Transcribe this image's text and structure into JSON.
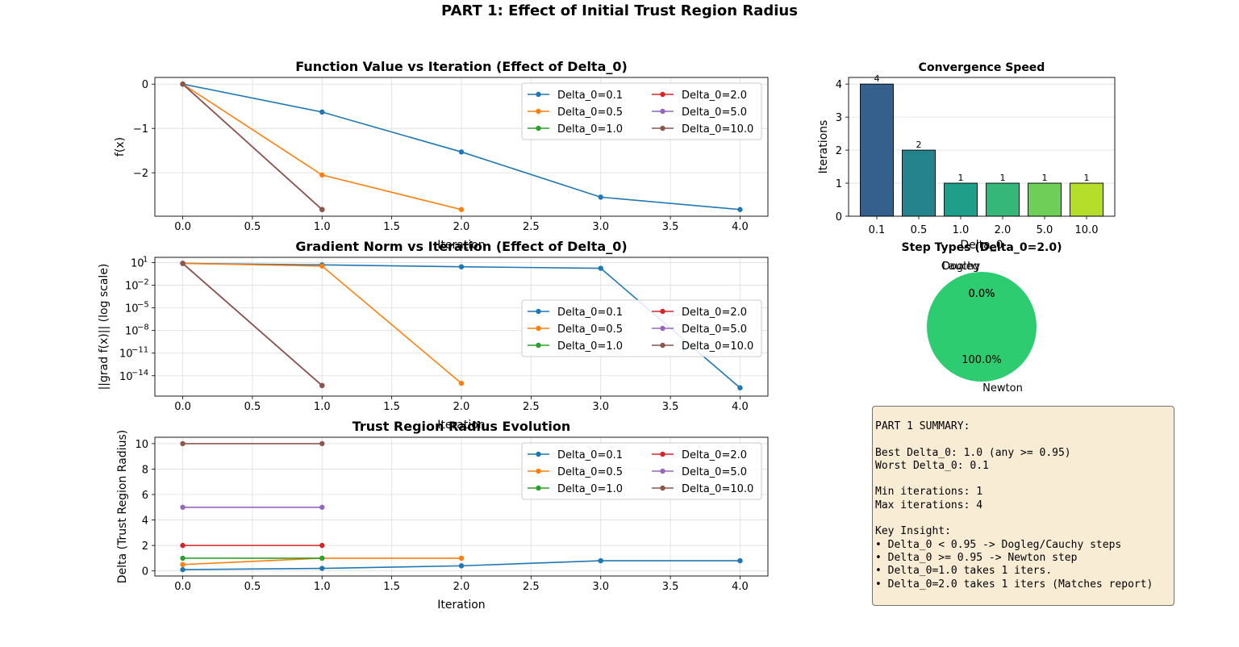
{
  "suptitle": "PART 1: Effect of Initial Trust Region Radius",
  "palette": {
    "Delta_0=0.1": "#1f77b4",
    "Delta_0=0.5": "#ff7f0e",
    "Delta_0=1.0": "#2ca02c",
    "Delta_0=2.0": "#d62728",
    "Delta_0=5.0": "#9467bd",
    "Delta_0=10.0": "#8c564b"
  },
  "chart_data": [
    {
      "id": "fval",
      "type": "line",
      "title": "Function Value vs Iteration (Effect of Delta_0)",
      "xlabel": "Iteration",
      "ylabel": "f(x)",
      "xlim": [
        -0.2,
        4.2
      ],
      "ylim": [
        -2.98,
        0.15
      ],
      "xticks": [
        "0.0",
        "0.5",
        "1.0",
        "1.5",
        "2.0",
        "2.5",
        "3.0",
        "3.5",
        "4.0"
      ],
      "yticks": [
        "0",
        "−1",
        "−2"
      ],
      "grid": true,
      "legend": "upper right, 2 columns",
      "series": [
        {
          "name": "Delta_0=0.1",
          "x": [
            0,
            1,
            2,
            3,
            4
          ],
          "y": [
            0,
            -0.63,
            -1.53,
            -2.55,
            -2.83
          ]
        },
        {
          "name": "Delta_0=0.5",
          "x": [
            0,
            1,
            2
          ],
          "y": [
            0,
            -2.05,
            -2.83
          ]
        },
        {
          "name": "Delta_0=1.0",
          "x": [
            0,
            1
          ],
          "y": [
            0,
            -2.83
          ]
        },
        {
          "name": "Delta_0=2.0",
          "x": [
            0,
            1
          ],
          "y": [
            0,
            -2.83
          ]
        },
        {
          "name": "Delta_0=5.0",
          "x": [
            0,
            1
          ],
          "y": [
            0,
            -2.83
          ]
        },
        {
          "name": "Delta_0=10.0",
          "x": [
            0,
            1
          ],
          "y": [
            0,
            -2.83
          ]
        }
      ]
    },
    {
      "id": "gnorm",
      "type": "line",
      "title": "Gradient Norm vs Iteration (Effect of Delta_0)",
      "xlabel": "Iteration",
      "ylabel": "||grad f(x)|| (log scale)",
      "yscale": "log",
      "xlim": [
        -0.2,
        4.2
      ],
      "ylim_log10": [
        -16.7,
        1.7
      ],
      "xticks": [
        "0.0",
        "0.5",
        "1.0",
        "1.5",
        "2.0",
        "2.5",
        "3.0",
        "3.5",
        "4.0"
      ],
      "yticks": [
        {
          "base": "10",
          "exp": "1"
        },
        {
          "base": "10",
          "exp": "−2"
        },
        {
          "base": "10",
          "exp": "−5"
        },
        {
          "base": "10",
          "exp": "−8"
        },
        {
          "base": "10",
          "exp": "−11"
        },
        {
          "base": "10",
          "exp": "−14"
        }
      ],
      "grid": true,
      "legend": "center right, 2 columns",
      "series": [
        {
          "name": "Delta_0=0.1",
          "x": [
            0,
            1,
            2,
            3,
            4
          ],
          "y_log10": [
            0.9,
            0.7,
            0.45,
            0.25,
            -15.6
          ]
        },
        {
          "name": "Delta_0=0.5",
          "x": [
            0,
            1,
            2
          ],
          "y_log10": [
            0.9,
            0.55,
            -15.0
          ]
        },
        {
          "name": "Delta_0=1.0",
          "x": [
            0,
            1
          ],
          "y_log10": [
            0.9,
            -15.3
          ]
        },
        {
          "name": "Delta_0=2.0",
          "x": [
            0,
            1
          ],
          "y_log10": [
            0.9,
            -15.3
          ]
        },
        {
          "name": "Delta_0=5.0",
          "x": [
            0,
            1
          ],
          "y_log10": [
            0.9,
            -15.3
          ]
        },
        {
          "name": "Delta_0=10.0",
          "x": [
            0,
            1
          ],
          "y_log10": [
            0.9,
            -15.3
          ]
        }
      ]
    },
    {
      "id": "delta",
      "type": "line",
      "title": "Trust Region Radius Evolution",
      "xlabel": "Iteration",
      "ylabel": "Delta (Trust Region Radius)",
      "xlim": [
        -0.2,
        4.2
      ],
      "ylim": [
        -0.4,
        10.5
      ],
      "xticks": [
        "0.0",
        "0.5",
        "1.0",
        "1.5",
        "2.0",
        "2.5",
        "3.0",
        "3.5",
        "4.0"
      ],
      "yticks": [
        "0",
        "2",
        "4",
        "6",
        "8",
        "10"
      ],
      "grid": true,
      "legend": "upper right, 2 columns",
      "series": [
        {
          "name": "Delta_0=0.1",
          "x": [
            0,
            1,
            2,
            3,
            4
          ],
          "y": [
            0.1,
            0.2,
            0.4,
            0.8,
            0.8
          ]
        },
        {
          "name": "Delta_0=0.5",
          "x": [
            0,
            1,
            2
          ],
          "y": [
            0.5,
            1.0,
            1.0
          ]
        },
        {
          "name": "Delta_0=1.0",
          "x": [
            0,
            1
          ],
          "y": [
            1.0,
            1.0
          ]
        },
        {
          "name": "Delta_0=2.0",
          "x": [
            0,
            1
          ],
          "y": [
            2.0,
            2.0
          ]
        },
        {
          "name": "Delta_0=5.0",
          "x": [
            0,
            1
          ],
          "y": [
            5.0,
            5.0
          ]
        },
        {
          "name": "Delta_0=10.0",
          "x": [
            0,
            1
          ],
          "y": [
            10.0,
            10.0
          ]
        }
      ]
    },
    {
      "id": "speed",
      "type": "bar",
      "title": "Convergence Speed",
      "xlabel": "Delta_0",
      "ylabel": "Iterations",
      "categories": [
        "0.1",
        "0.5",
        "1.0",
        "2.0",
        "5.0",
        "10.0"
      ],
      "values": [
        4,
        2,
        1,
        1,
        1,
        1
      ],
      "data_labels": [
        "4",
        "2",
        "1",
        "1",
        "1",
        "1"
      ],
      "colors": [
        "#355f8d",
        "#25838e",
        "#1f9e89",
        "#35b779",
        "#6ece58",
        "#b5de2b"
      ],
      "ylim": [
        0,
        4.2
      ],
      "yticks": [
        "0",
        "1",
        "2",
        "3",
        "4"
      ],
      "grid": true
    },
    {
      "id": "steps",
      "type": "pie",
      "title": "Step Types (Delta_0=2.0)",
      "labels": [
        "Cauchy",
        "Dogleg",
        "Newton"
      ],
      "values": [
        0,
        0,
        100
      ],
      "pct_labels": [
        "0.0%",
        "0.0%",
        "100.0%"
      ],
      "colors": [
        "#e74c3c",
        "#3498db",
        "#2ecc71"
      ]
    }
  ],
  "summary": {
    "lines": [
      "PART 1 SUMMARY:",
      "",
      "Best Delta_0: 1.0 (any >= 0.95)",
      "Worst Delta_0: 0.1",
      "",
      "Min iterations: 1",
      "Max iterations: 4",
      "",
      "Key Insight:",
      "• Delta_0 < 0.95 -> Dogleg/Cauchy steps",
      "• Delta_0 >= 0.95 -> Newton step",
      "• Delta_0=1.0 takes 1 iters.",
      "• Delta_0=2.0 takes 1 iters (Matches report)"
    ]
  }
}
